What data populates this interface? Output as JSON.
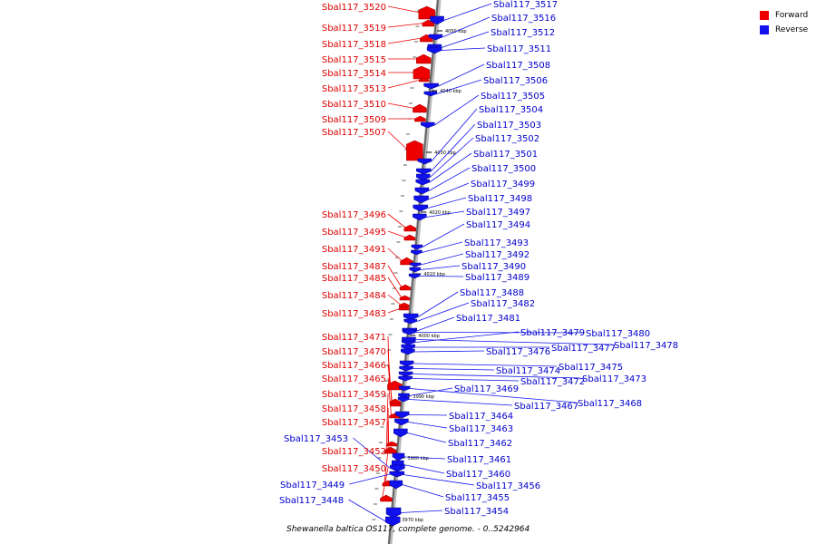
{
  "diagram": {
    "caption": "Shewanella baltica OS117, complete genome. - 0..5242964",
    "legend": [
      {
        "label": "Forward",
        "color": "#ee0000"
      },
      {
        "label": "Reverse",
        "color": "#1111ee"
      }
    ],
    "scale_ticks": [
      "4050 kbp",
      "4040 kbp",
      "4030 kbp",
      "4020 kbp",
      "4010 kbp",
      "4000 kbp",
      "3990 kbp",
      "3980 kbp",
      "3970 kbp"
    ],
    "forward_genes": [
      "Sbal117_3520",
      "Sbal117_3519",
      "Sbal117_3518",
      "Sbal117_3515",
      "Sbal117_3514",
      "Sbal117_3513",
      "Sbal117_3510",
      "Sbal117_3509",
      "Sbal117_3507",
      "Sbal117_3496",
      "Sbal117_3495",
      "Sbal117_3491",
      "Sbal117_3487",
      "Sbal117_3485",
      "Sbal117_3484",
      "Sbal117_3483",
      "Sbal117_3471",
      "Sbal117_3470",
      "Sbal117_3466",
      "Sbal117_3465",
      "Sbal117_3459",
      "Sbal117_3458",
      "Sbal117_3457",
      "Sbal117_3452",
      "Sbal117_3450"
    ],
    "reverse_genes": [
      "Sbal117_3517",
      "Sbal117_3516",
      "Sbal117_3512",
      "Sbal117_3511",
      "Sbal117_3508",
      "Sbal117_3506",
      "Sbal117_3505",
      "Sbal117_3504",
      "Sbal117_3503",
      "Sbal117_3502",
      "Sbal117_3501",
      "Sbal117_3500",
      "Sbal117_3499",
      "Sbal117_3498",
      "Sbal117_3497",
      "Sbal117_3494",
      "Sbal117_3493",
      "Sbal117_3492",
      "Sbal117_3490",
      "Sbal117_3489",
      "Sbal117_3488",
      "Sbal117_3482",
      "Sbal117_3481",
      "Sbal117_3479",
      "Sbal117_3480",
      "Sbal117_3477",
      "Sbal117_3478",
      "Sbal117_3476",
      "Sbal117_3475",
      "Sbal117_3474",
      "Sbal117_3473",
      "Sbal117_3472",
      "Sbal117_3469",
      "Sbal117_3468",
      "Sbal117_3467",
      "Sbal117_3464",
      "Sbal117_3463",
      "Sbal117_3462",
      "Sbal117_3461",
      "Sbal117_3460",
      "Sbal117_3456",
      "Sbal117_3455",
      "Sbal117_3454",
      "Sbal117_3453",
      "Sbal117_3449",
      "Sbal117_3448"
    ]
  }
}
